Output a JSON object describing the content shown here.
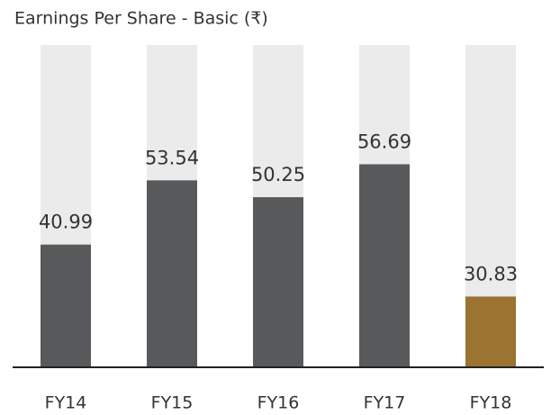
{
  "chart_data": {
    "type": "bar",
    "title": "Earnings Per Share - Basic (₹)",
    "categories": [
      "FY14",
      "FY15",
      "FY16",
      "FY17",
      "FY18"
    ],
    "values": [
      40.99,
      53.54,
      50.25,
      56.69,
      30.83
    ],
    "colors": [
      "#58595b",
      "#58595b",
      "#58595b",
      "#58595b",
      "#9a7430"
    ],
    "background_color": "#ebebeb",
    "ylim": [
      17,
      80
    ]
  }
}
